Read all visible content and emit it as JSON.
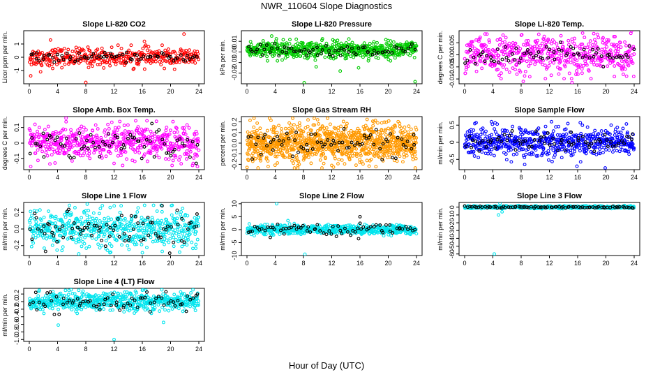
{
  "figure": {
    "title": "NWR_110604  Slope Diagnostics",
    "xlabel": "Hour of Day (UTC)"
  },
  "chart_data": [
    {
      "type": "scatter",
      "title": "Slope Li-820 CO2",
      "xlabel": "",
      "ylabel": "Licor ppm per min.",
      "xlim": [
        0,
        24
      ],
      "ylim": [
        -2,
        2
      ],
      "xticks": [
        "0",
        "4",
        "8",
        "12",
        "16",
        "20",
        "24"
      ],
      "yticks": [
        "-1",
        "0",
        "1"
      ],
      "series": [
        {
          "color": "#ff0000",
          "center": 0.0,
          "spread": 0.35,
          "n": 380,
          "outliers": [
            [
              8.0,
              -1.9
            ],
            [
              21.9,
              1.75
            ],
            [
              1.6,
              -1.1
            ],
            [
              0.2,
              -1.4
            ],
            [
              3.0,
              1.3
            ],
            [
              16.3,
              1.2
            ]
          ]
        },
        {
          "color": "#000000",
          "center": 0.0,
          "spread": 0.15,
          "n": 70,
          "outliers": []
        }
      ]
    },
    {
      "type": "scatter",
      "title": "Slope Li-820 Pressure",
      "xlabel": "",
      "ylabel": "kPa per min.",
      "xlim": [
        0,
        24
      ],
      "ylim": [
        -0.03,
        0.02
      ],
      "xticks": [
        "0",
        "4",
        "8",
        "12",
        "16",
        "20",
        "24"
      ],
      "yticks": [
        "-0.02",
        "-0.01",
        "0.00",
        "0.01"
      ],
      "series": [
        {
          "color": "#00cc00",
          "center": 0.002,
          "spread": 0.004,
          "n": 600,
          "outliers": [
            [
              8.1,
              -0.029
            ],
            [
              23.8,
              -0.028
            ],
            [
              13.2,
              -0.018
            ],
            [
              15.8,
              -0.015
            ],
            [
              9.8,
              -0.014
            ],
            [
              3.5,
              0.015
            ]
          ]
        },
        {
          "color": "#000000",
          "center": 0.001,
          "spread": 0.003,
          "n": 70,
          "outliers": []
        }
      ]
    },
    {
      "type": "scatter",
      "title": "Slope Li-820 Temp.",
      "xlabel": "",
      "ylabel": "degrees C per min.",
      "xlim": [
        0,
        24
      ],
      "ylim": [
        -0.012,
        0.01
      ],
      "xticks": [
        "0",
        "4",
        "8",
        "12",
        "16",
        "20",
        "24"
      ],
      "yticks": [
        "-0.010",
        "-0.005",
        "0.000",
        "0.005"
      ],
      "series": [
        {
          "color": "#ff00ff",
          "center": 0.0,
          "spread": 0.0038,
          "n": 520,
          "outliers": [
            [
              15.2,
              -0.0115
            ],
            [
              16.7,
              0.009
            ],
            [
              8.3,
              -0.011
            ],
            [
              21.2,
              -0.009
            ],
            [
              18.8,
              0.0085
            ]
          ]
        },
        {
          "color": "#000000",
          "center": 0.0,
          "spread": 0.002,
          "n": 70,
          "outliers": []
        }
      ]
    },
    {
      "type": "scatter",
      "title": "Slope Amb. Box Temp.",
      "xlabel": "",
      "ylabel": "degrees C per min.",
      "xlim": [
        0,
        24
      ],
      "ylim": [
        -0.17,
        0.17
      ],
      "xticks": [
        "0",
        "4",
        "8",
        "12",
        "16",
        "20",
        "24"
      ],
      "yticks": [
        "-0.1",
        "0",
        "0.1"
      ],
      "series": [
        {
          "color": "#ff00ff",
          "center": 0.0,
          "spread": 0.055,
          "n": 560,
          "outliers": [
            [
              5.2,
              0.16
            ],
            [
              0.2,
              -0.15
            ],
            [
              23.8,
              -0.15
            ],
            [
              12.0,
              -0.13
            ],
            [
              18.0,
              0.14
            ]
          ]
        },
        {
          "color": "#000000",
          "center": 0.0,
          "spread": 0.05,
          "n": 70,
          "outliers": []
        }
      ]
    },
    {
      "type": "scatter",
      "title": "Slope Gas Stream RH",
      "xlabel": "",
      "ylabel": "percent per min.",
      "xlim": [
        0,
        24
      ],
      "ylim": [
        -0.25,
        0.25
      ],
      "xticks": [
        "0",
        "4",
        "8",
        "12",
        "16",
        "20",
        "24"
      ],
      "yticks": [
        "-0.2",
        "-0.1",
        "0.0",
        "0.1",
        "0.2"
      ],
      "series": [
        {
          "color": "#ff9900",
          "center": 0.0,
          "spread": 0.09,
          "n": 1000,
          "outliers": [
            [
              3.0,
              -0.22
            ],
            [
              10.0,
              0.22
            ],
            [
              12.0,
              -0.21
            ],
            [
              18.0,
              0.2
            ]
          ]
        },
        {
          "color": "#000000",
          "center": 0.0,
          "spread": 0.06,
          "n": 70,
          "outliers": []
        }
      ]
    },
    {
      "type": "scatter",
      "title": "Slope Sample Flow",
      "xlabel": "",
      "ylabel": "ml/min per min.",
      "xlim": [
        0,
        24
      ],
      "ylim": [
        -0.8,
        0.75
      ],
      "xticks": [
        "0",
        "4",
        "8",
        "12",
        "16",
        "20",
        "24"
      ],
      "yticks": [
        "-0.5",
        "0",
        "0.5"
      ],
      "series": [
        {
          "color": "#0000ff",
          "center": 0.0,
          "spread": 0.22,
          "n": 600,
          "outliers": [
            [
              15.9,
              -0.7
            ],
            [
              19.9,
              -0.75
            ],
            [
              3.8,
              0.6
            ],
            [
              8.5,
              -0.65
            ],
            [
              12.3,
              0.6
            ]
          ]
        },
        {
          "color": "#000000",
          "center": 0.02,
          "spread": 0.12,
          "n": 70,
          "outliers": []
        }
      ]
    },
    {
      "type": "scatter",
      "title": "Slope Line 1 Flow",
      "xlabel": "",
      "ylabel": "ml/min per min.",
      "xlim": [
        0,
        24
      ],
      "ylim": [
        -0.32,
        0.32
      ],
      "xticks": [
        "0",
        "4",
        "8",
        "12",
        "16",
        "20",
        "24"
      ],
      "yticks": [
        "-0.2",
        "0.0",
        "0.2"
      ],
      "series": [
        {
          "color": "#00e5ee",
          "center": 0.0,
          "spread": 0.11,
          "n": 560,
          "outliers": [
            [
              8.2,
              0.3
            ],
            [
              7.0,
              -0.3
            ],
            [
              13.0,
              0.28
            ]
          ]
        },
        {
          "color": "#000000",
          "center": 0.0,
          "spread": 0.12,
          "n": 80,
          "outliers": [
            [
              18.8,
              0.28
            ],
            [
              2.3,
              -0.27
            ]
          ]
        }
      ]
    },
    {
      "type": "scatter",
      "title": "Slope Line 2 Flow",
      "xlabel": "",
      "ylabel": "ml/min per min.",
      "xlim": [
        0,
        24
      ],
      "ylim": [
        -10,
        10.5
      ],
      "xticks": [
        "0",
        "4",
        "8",
        "12",
        "16",
        "20",
        "24"
      ],
      "yticks": [
        "-10",
        "-5",
        "0",
        "5",
        "10"
      ],
      "series": [
        {
          "color": "#00e5ee",
          "center": 0.0,
          "spread": 0.9,
          "n": 560,
          "outliers": [
            [
              4.2,
              10.0
            ],
            [
              8.2,
              -9.5
            ],
            [
              5.8,
              3.5
            ]
          ]
        },
        {
          "color": "#000000",
          "center": 0.0,
          "spread": 1.0,
          "n": 70,
          "outliers": [
            [
              16.0,
              5.0
            ],
            [
              15.8,
              -3.5
            ],
            [
              3.3,
              -3.0
            ]
          ]
        }
      ]
    },
    {
      "type": "scatter",
      "title": "Slope Line 3 Flow",
      "xlabel": "",
      "ylabel": "ml/min per min.",
      "xlim": [
        0,
        24
      ],
      "ylim": [
        -62,
        6
      ],
      "xticks": [
        "0",
        "4",
        "8",
        "12",
        "16",
        "20",
        "24"
      ],
      "yticks": [
        "-60",
        "-50",
        "-40",
        "-30",
        "-20",
        "-10",
        "0"
      ],
      "series": [
        {
          "color": "#00e5ee",
          "center": 0.0,
          "spread": 0.8,
          "n": 520,
          "outliers": [
            [
              4.2,
              -60.0
            ],
            [
              4.8,
              -10.0
            ],
            [
              5.3,
              -6.0
            ],
            [
              5.0,
              5.0
            ]
          ]
        },
        {
          "color": "#000000",
          "center": 0.0,
          "spread": 0.6,
          "n": 80,
          "outliers": []
        }
      ]
    },
    {
      "type": "scatter",
      "title": "Slope Line 4 (LT) Flow",
      "xlabel": "",
      "ylabel": "ml/min per min.",
      "xlim": [
        0,
        24
      ],
      "ylim": [
        -1.05,
        0.35
      ],
      "xticks": [
        "0",
        "4",
        "8",
        "12",
        "16",
        "20",
        "24"
      ],
      "yticks": [
        "-1.0",
        "-0.8",
        "-0.6",
        "-0.4",
        "-0.2",
        "0.0",
        "0.2"
      ],
      "series": [
        {
          "color": "#00e5ee",
          "center": 0.0,
          "spread": 0.12,
          "n": 600,
          "outliers": [
            [
              12.0,
              -1.0
            ],
            [
              4.1,
              -0.62
            ],
            [
              7.0,
              0.3
            ],
            [
              19.0,
              -0.55
            ],
            [
              16.5,
              0.3
            ]
          ]
        },
        {
          "color": "#000000",
          "center": 0.0,
          "spread": 0.13,
          "n": 70,
          "outliers": []
        }
      ]
    }
  ]
}
